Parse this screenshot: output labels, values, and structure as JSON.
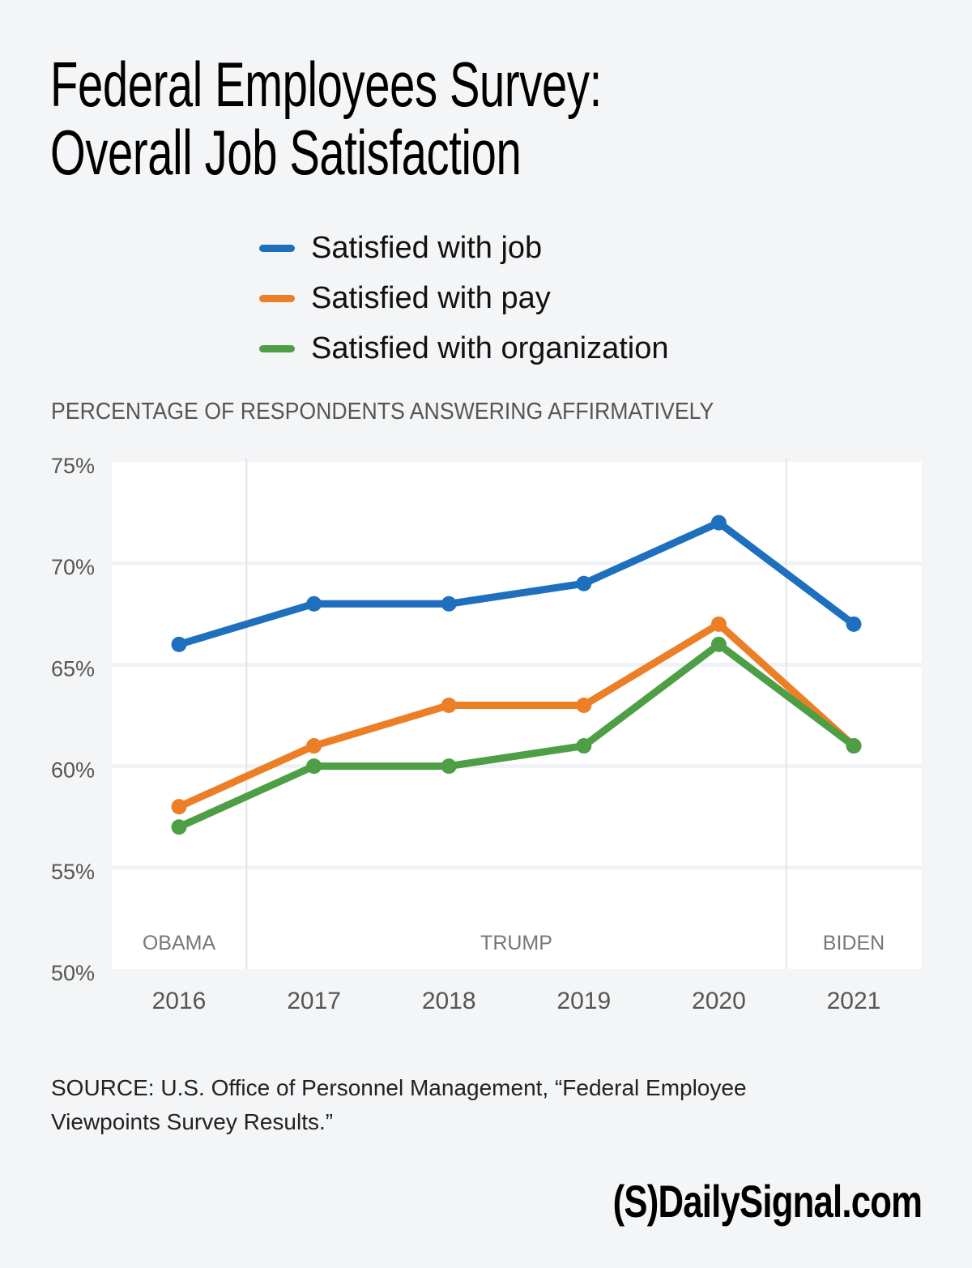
{
  "header": {
    "title_line1": "Federal Employees Survey:",
    "title_line2": "Overall Job Satisfaction"
  },
  "legend": [
    {
      "label": "Satisfied with job",
      "color": "#1f6fbf"
    },
    {
      "label": "Satisfied with pay",
      "color": "#ec7f26"
    },
    {
      "label": "Satisfied with organization",
      "color": "#4e9e45"
    }
  ],
  "footer": {
    "source": "SOURCE: U.S. Office of Personnel Management, “Federal Employee Viewpoints Survey Results.”",
    "brand": "(S)DailySignal.com"
  },
  "chart_data": {
    "type": "line",
    "title": "Federal Employees Survey: Overall Job Satisfaction",
    "ylabel": "PERCENTAGE OF RESPONDENTS ANSWERING AFFIRMATIVELY",
    "xlabel": "",
    "x": [
      "2016",
      "2017",
      "2018",
      "2019",
      "2020",
      "2021"
    ],
    "ylim": [
      50,
      75
    ],
    "yticks": [
      50,
      55,
      60,
      65,
      70,
      75
    ],
    "ytick_labels": [
      "50%",
      "55%",
      "60%",
      "65%",
      "70%",
      "75%"
    ],
    "grid": true,
    "legend_position": "top",
    "series": [
      {
        "name": "Satisfied with job",
        "color": "#1f6fbf",
        "values": [
          66,
          68,
          68,
          69,
          72,
          67
        ]
      },
      {
        "name": "Satisfied with pay",
        "color": "#ec7f26",
        "values": [
          58,
          61,
          63,
          63,
          67,
          61
        ]
      },
      {
        "name": "Satisfied with organization",
        "color": "#4e9e45",
        "values": [
          57,
          60,
          60,
          61,
          66,
          61
        ]
      }
    ],
    "annotations": [
      {
        "text": "OBAMA",
        "years": [
          "2016"
        ]
      },
      {
        "text": "TRUMP",
        "years": [
          "2017",
          "2018",
          "2019",
          "2020"
        ]
      },
      {
        "text": "BIDEN",
        "years": [
          "2021"
        ]
      }
    ]
  }
}
